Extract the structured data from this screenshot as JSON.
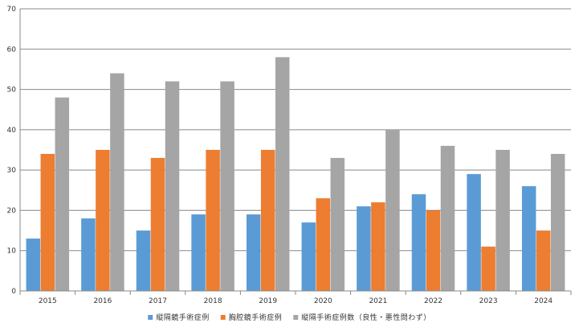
{
  "chart_data": {
    "type": "bar",
    "categories": [
      "2015",
      "2016",
      "2017",
      "2018",
      "2019",
      "2020",
      "2021",
      "2022",
      "2023",
      "2024"
    ],
    "series": [
      {
        "name": "縦隔鏡手術症例",
        "color": "#5b9bd5",
        "values": [
          13,
          18,
          15,
          19,
          19,
          17,
          21,
          24,
          29,
          26
        ]
      },
      {
        "name": "胸腔鏡手術症例",
        "color": "#ed7d31",
        "values": [
          34,
          35,
          33,
          35,
          35,
          23,
          22,
          20,
          11,
          15
        ]
      },
      {
        "name": "縦隔手術症例数（良性・悪性問わず）",
        "color": "#a5a5a5",
        "values": [
          48,
          54,
          52,
          52,
          58,
          33,
          40,
          36,
          35,
          34
        ]
      }
    ],
    "ylim": [
      0,
      70
    ],
    "yticks": [
      0,
      10,
      20,
      30,
      40,
      50,
      60,
      70
    ],
    "grid": true,
    "legend_position": "bottom",
    "title": "",
    "xlabel": "",
    "ylabel": ""
  }
}
